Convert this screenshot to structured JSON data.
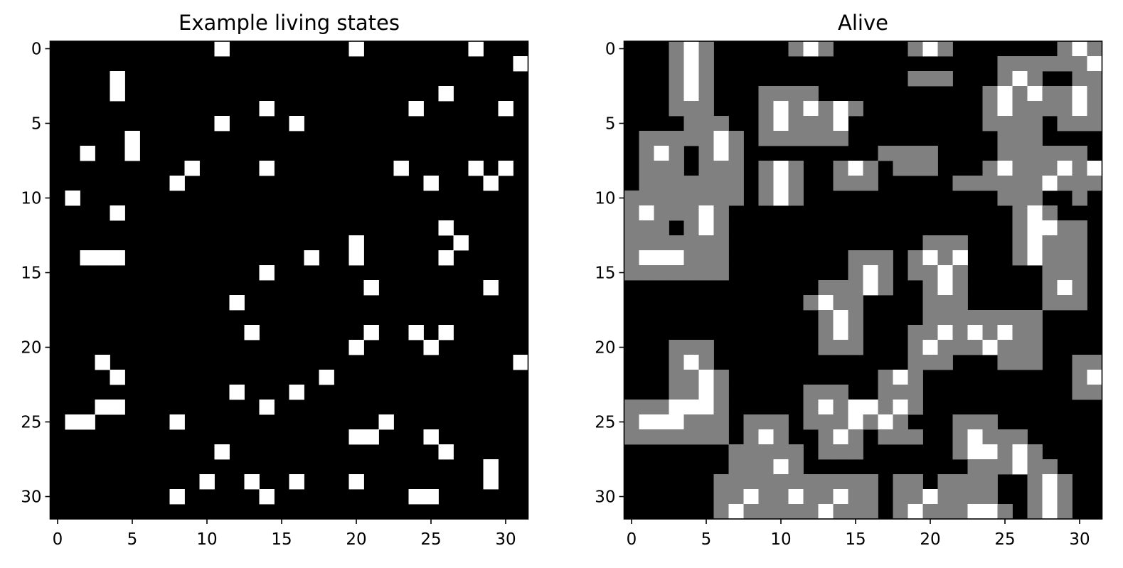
{
  "chart_data": [
    {
      "type": "heatmap",
      "title": "Example living states",
      "grid_size": 32,
      "xticks": [
        0,
        5,
        10,
        15,
        20,
        25,
        30
      ],
      "yticks": [
        0,
        5,
        10,
        15,
        20,
        25,
        30
      ],
      "colors": {
        "0": "#000000",
        "1": "#ffffff"
      },
      "cells": [
        "...........#........#.......#...",
        "...............................#",
        "....#...........................",
        "....#.....................#.....",
        "..............#.........#.....#.",
        "...........#....#...............",
        ".....#..........................",
        "..#..#..........................",
        ".........#....#........#....#.#.",
        "........#................#...#..",
        ".#..............................",
        "....#...........................",
        "..........................#.....",
        "....................#......#....",
        "..###............#..#.....#.....",
        "..............#.................",
        ".....................#.......#..",
        "............#...................",
        "................................",
        ".............#.......#..#.#.....",
        "....................#....#......",
        "...#...........................#",
        "....#.............#.............",
        "............#...#...............",
        "...##.........#.................",
        ".##.....#.............#.........",
        "....................##...#......",
        "...........#..............#.....",
        ".............................#..",
        "..........#..#..#...#........#..",
        "........#.....#.........##......",
        "................................"
      ]
    },
    {
      "type": "heatmap",
      "title": "Alive",
      "grid_size": 32,
      "xticks": [
        0,
        5,
        10,
        15,
        20,
        25,
        30
      ],
      "yticks": [
        0,
        5,
        10,
        15,
        20,
        25,
        30
      ],
      "colors": {
        "0": "#000000",
        "1": "#808080",
        "2": "#ffffff"
      },
      "cells": [
        "...121.....121.....121.......121",
        "...121...................1111112",
        "...121.............111...121..11",
        "...121...1111...........12121121",
        "...111...1212121........12111121",
        "....111..121112.........1111.111",
        ".1111121.111111..........111....",
        ".121.121.........1111....111111.",
        ".111.111.121..121.111...12111212",
        ".1111111.121..111.....1111112111",
        "11111111.121.............111..1.",
        "1211121...................121...",
        "111.121...................12211.",
        "1111111.............111...12111.",
        "1222111........111.1212...12111.",
        "1111111........121.1121.....111.",
        ".............11121..121.....121.",
        "............1211....111.....111.",
        ".............121....11111111....",
        ".............121...112121211....",
        "...111.......111...121112111....",
        "...121.............111...111..11",
        "...1121..........121..........12",
        "...1121.....111..111..........11",
        "1112221.....12122121............",
        "1222111.111.1112121...111.......",
        "1111111.121..121.111..12111.....",
        ".......11111.111......122121....",
        ".......11121...........111211...",
        "......11111111111.11.1111..121..",
        "......11211211211.1121111..121..",
        "......12111112111.12111221.121.."
      ]
    }
  ]
}
